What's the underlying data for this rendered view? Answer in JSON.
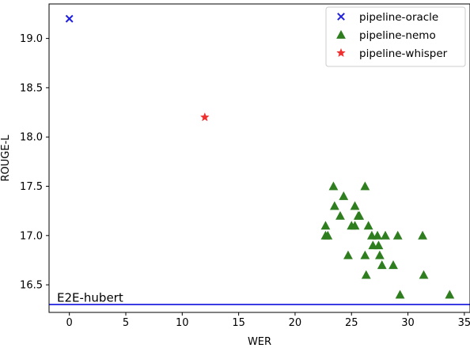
{
  "chart_data": {
    "type": "scatter",
    "xlabel": "WER",
    "ylabel": "ROUGE-L",
    "xlim": [
      -1.8,
      35.5
    ],
    "ylim": [
      16.22,
      19.35
    ],
    "xticks": [
      "0",
      "5",
      "10",
      "15",
      "20",
      "25",
      "30",
      "35"
    ],
    "yticks": [
      "16.5",
      "17.0",
      "17.5",
      "18.0",
      "18.5",
      "19.0"
    ],
    "grid": false,
    "legend_position": "top-right",
    "series": [
      {
        "name": "pipeline-oracle",
        "marker": "x",
        "color": "#1f1fe0",
        "points": [
          [
            0.0,
            19.2
          ]
        ]
      },
      {
        "name": "pipeline-nemo",
        "marker": "triangle",
        "color": "#2e7d1e",
        "points": [
          [
            22.7,
            17.1
          ],
          [
            22.7,
            17.0
          ],
          [
            22.9,
            17.0
          ],
          [
            23.4,
            17.5
          ],
          [
            23.5,
            17.3
          ],
          [
            24.0,
            17.2
          ],
          [
            24.3,
            17.4
          ],
          [
            24.7,
            16.8
          ],
          [
            25.0,
            17.1
          ],
          [
            25.3,
            17.3
          ],
          [
            25.3,
            17.1
          ],
          [
            25.6,
            17.2
          ],
          [
            25.7,
            17.2
          ],
          [
            26.2,
            17.5
          ],
          [
            26.2,
            16.8
          ],
          [
            26.3,
            16.6
          ],
          [
            26.5,
            17.1
          ],
          [
            26.8,
            17.0
          ],
          [
            26.9,
            16.9
          ],
          [
            27.3,
            17.0
          ],
          [
            27.4,
            16.9
          ],
          [
            27.5,
            16.8
          ],
          [
            27.7,
            16.7
          ],
          [
            28.0,
            17.0
          ],
          [
            28.7,
            16.7
          ],
          [
            29.1,
            17.0
          ],
          [
            29.3,
            16.4
          ],
          [
            31.3,
            17.0
          ],
          [
            31.4,
            16.6
          ],
          [
            33.7,
            16.4
          ]
        ]
      },
      {
        "name": "pipeline-whisper",
        "marker": "star",
        "color": "#ee3030",
        "points": [
          [
            12.0,
            18.2
          ]
        ]
      }
    ],
    "reference_lines": [
      {
        "label": "E2E-hubert",
        "y": 16.3,
        "color": "#1f1fe0"
      }
    ]
  }
}
